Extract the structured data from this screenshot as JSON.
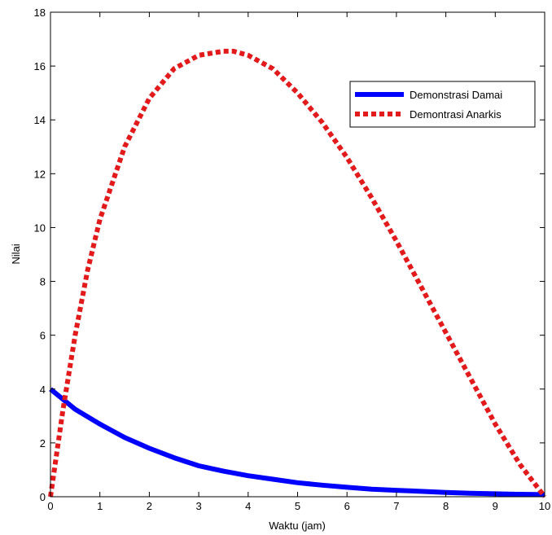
{
  "chart_data": {
    "type": "line",
    "title": "",
    "xlabel": "Waktu (jam)",
    "ylabel": "Nilai",
    "xlim": [
      0,
      10
    ],
    "ylim": [
      0,
      18
    ],
    "xticks": [
      0,
      1,
      2,
      3,
      4,
      5,
      6,
      7,
      8,
      9,
      10
    ],
    "yticks": [
      0,
      2,
      4,
      6,
      8,
      10,
      12,
      14,
      16,
      18
    ],
    "grid": false,
    "legend_position": "top-right",
    "series": [
      {
        "name": "Demonstrasi Damai",
        "color": "#0000ff",
        "style": "solid",
        "x": [
          0,
          0.5,
          1,
          1.5,
          2,
          2.5,
          3,
          3.5,
          4,
          4.5,
          5,
          5.5,
          6,
          6.5,
          7,
          7.5,
          8,
          8.5,
          9,
          9.5,
          10
        ],
        "y": [
          4.0,
          3.25,
          2.7,
          2.2,
          1.8,
          1.45,
          1.15,
          0.95,
          0.78,
          0.65,
          0.52,
          0.43,
          0.35,
          0.28,
          0.24,
          0.2,
          0.16,
          0.13,
          0.11,
          0.09,
          0.08
        ]
      },
      {
        "name": "Demontrasi Anarkis",
        "color": "#e31a1c",
        "style": "dashed",
        "x": [
          0,
          0.25,
          0.5,
          0.75,
          1,
          1.5,
          2,
          2.5,
          3,
          3.5,
          3.7,
          4,
          4.5,
          5,
          5.5,
          6,
          6.5,
          7,
          7.5,
          8,
          8.5,
          9,
          9.5,
          10
        ],
        "y": [
          0,
          3.2,
          6.0,
          8.4,
          10.3,
          13.0,
          14.8,
          15.9,
          16.4,
          16.55,
          16.55,
          16.4,
          15.9,
          15.0,
          13.9,
          12.6,
          11.1,
          9.5,
          7.8,
          6.1,
          4.4,
          2.7,
          1.2,
          0
        ]
      }
    ]
  }
}
